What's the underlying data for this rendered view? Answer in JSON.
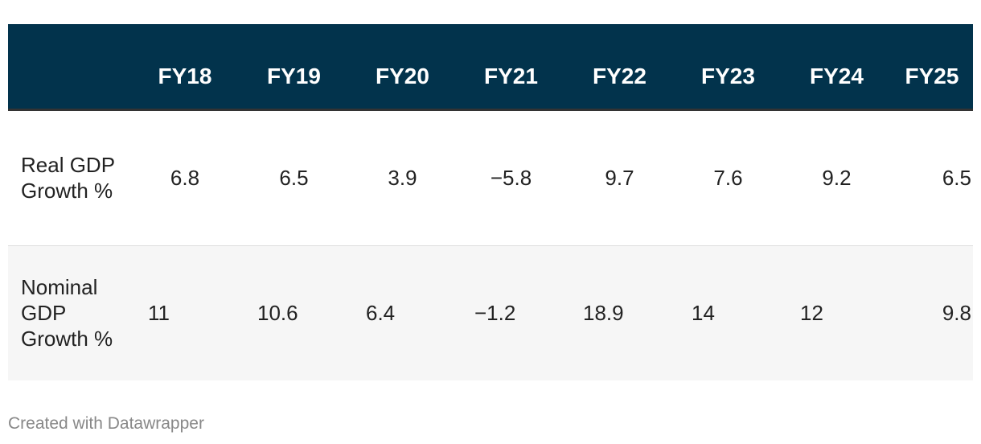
{
  "chart_data": {
    "type": "table",
    "columns": [
      "",
      "FY18",
      "FY19",
      "FY20",
      "FY21",
      "FY22",
      "FY23",
      "FY24",
      "FY25"
    ],
    "rows": [
      {
        "label": "Real GDP Growth %",
        "values": [
          "6.8",
          "6.5",
          "3.9",
          "−5.8",
          "9.7",
          "7.6",
          "9.2",
          "6.5"
        ]
      },
      {
        "label": "Nominal GDP Growth %",
        "values": [
          "11",
          "10.6",
          "6.4",
          "−1.2",
          "18.9",
          "14",
          "12",
          "9.8"
        ]
      }
    ],
    "header_color": "#02334c"
  },
  "footer": {
    "credit": "Created with Datawrapper"
  }
}
